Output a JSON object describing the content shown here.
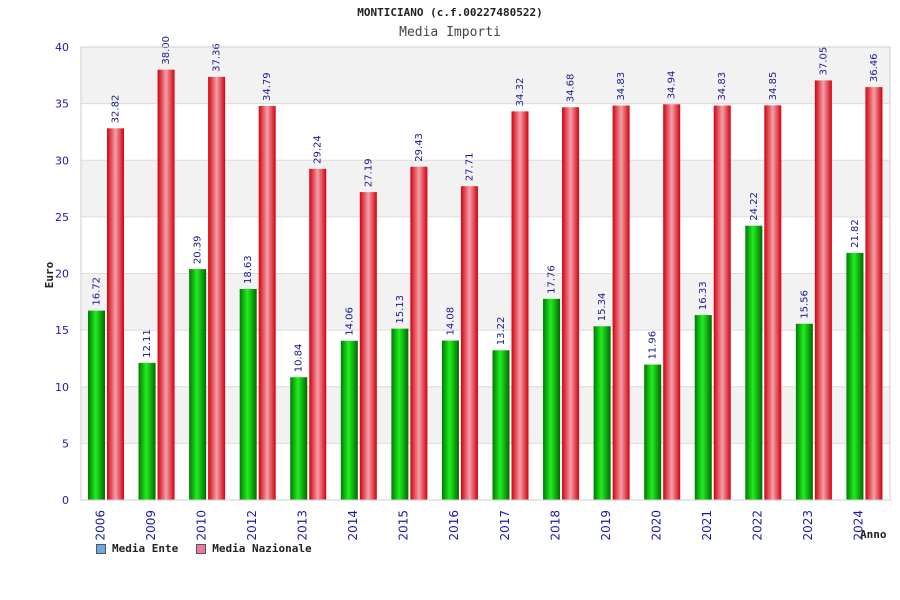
{
  "chart_data": {
    "type": "bar",
    "title": "MONTICIANO (c.f.00227480522)",
    "subtitle": "Media Importi",
    "xlabel": "Anno",
    "ylabel": "Euro",
    "ylim": [
      0,
      40
    ],
    "yticks": [
      0,
      5,
      10,
      15,
      20,
      25,
      30,
      35,
      40
    ],
    "categories": [
      "2006",
      "2009",
      "2010",
      "2012",
      "2013",
      "2014",
      "2015",
      "2016",
      "2017",
      "2018",
      "2019",
      "2020",
      "2021",
      "2022",
      "2023",
      "2024"
    ],
    "series": [
      {
        "name": "Media Ente",
        "values": [
          16.72,
          12.11,
          20.39,
          18.63,
          10.84,
          14.06,
          15.13,
          14.08,
          13.22,
          17.76,
          15.34,
          11.96,
          16.33,
          24.22,
          15.56,
          21.82
        ],
        "labels": [
          "16.72",
          "12.11",
          "20.39",
          "18.63",
          "10.84",
          "14.06",
          "15.13",
          "14.08",
          "13.22",
          "17.76",
          "15.34",
          "11.96",
          "16.33",
          "24.22",
          "15.56",
          "21.82"
        ]
      },
      {
        "name": "Media Nazionale",
        "values": [
          32.82,
          38.0,
          37.36,
          34.79,
          29.24,
          27.19,
          29.43,
          27.71,
          34.32,
          34.68,
          34.83,
          34.94,
          34.83,
          34.85,
          37.05,
          36.46
        ],
        "labels": [
          "32.82",
          "38.00",
          "37.36",
          "34.79",
          "29.24",
          "27.19",
          "29.43",
          "27.71",
          "34.32",
          "34.68",
          "34.83",
          "34.94",
          "34.83",
          "34.85",
          "37.05",
          "36.46"
        ]
      }
    ],
    "legend": {
      "placement": "bottom-left",
      "items": [
        {
          "label": "Media Ente",
          "color": "#6aa6e8"
        },
        {
          "label": "Media Nazionale",
          "color": "#e87aa0"
        }
      ]
    },
    "colors": {
      "ente": "#00b000",
      "nazionale": "#e8101c",
      "band": "#f2f2f2"
    }
  }
}
